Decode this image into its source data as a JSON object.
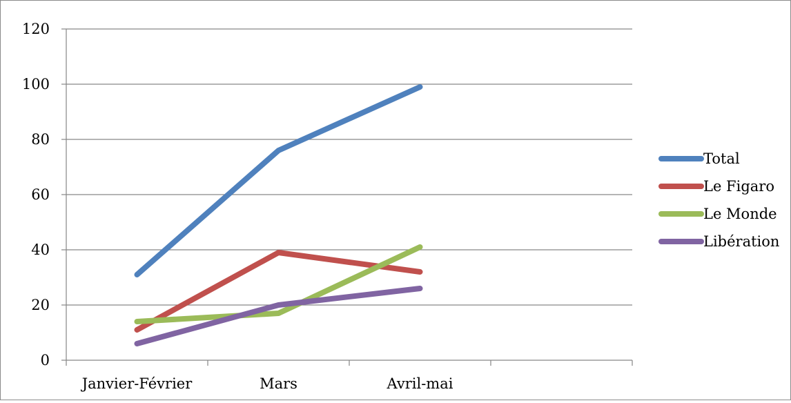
{
  "chart_data": {
    "type": "line",
    "categories": [
      "Janvier-Février",
      "Mars",
      "Avril-mai"
    ],
    "series": [
      {
        "name": "Total",
        "values": [
          31,
          76,
          99
        ],
        "color": "#4F81BD"
      },
      {
        "name": "Le Figaro",
        "values": [
          11,
          39,
          32
        ],
        "color": "#C0504D"
      },
      {
        "name": "Le Monde",
        "values": [
          14,
          17,
          41
        ],
        "color": "#9BBB59"
      },
      {
        "name": "Libération",
        "values": [
          6,
          20,
          26
        ],
        "color": "#8064A2"
      }
    ],
    "ylim": [
      0,
      120
    ],
    "yticks": [
      "0",
      "20",
      "40",
      "60",
      "80",
      "100",
      "120"
    ],
    "grid": true,
    "legend_position": "right",
    "title": "",
    "xlabel": "",
    "ylabel": ""
  }
}
